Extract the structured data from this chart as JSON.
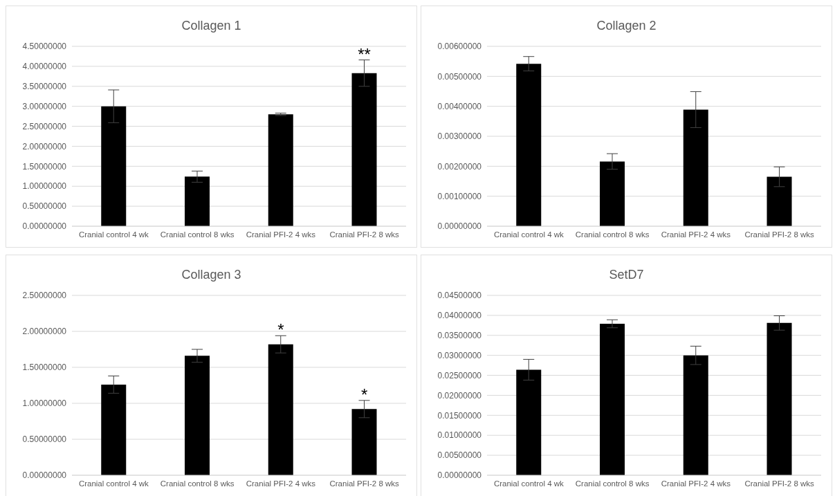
{
  "chart_data": [
    {
      "type": "bar",
      "title": "Collagen 1",
      "categories": [
        "Cranial control 4 wk",
        "Cranial control 8 wks",
        "Cranial PFI-2 4 wks",
        "Cranial PFI-2 8 wks"
      ],
      "values": [
        3.0,
        1.24,
        2.8,
        3.83
      ],
      "errors": [
        0.41,
        0.14,
        0.03,
        0.33
      ],
      "color": "#000000",
      "ylim": [
        0,
        4.5
      ],
      "yticks": [
        {
          "value": 0,
          "label": "0.00000000"
        },
        {
          "value": 0.5,
          "label": "0.50000000"
        },
        {
          "value": 1,
          "label": "1.00000000"
        },
        {
          "value": 1.5,
          "label": "1.50000000"
        },
        {
          "value": 2,
          "label": "2.00000000"
        },
        {
          "value": 2.5,
          "label": "2.50000000"
        },
        {
          "value": 3,
          "label": "3.00000000"
        },
        {
          "value": 3.5,
          "label": "3.50000000"
        },
        {
          "value": 4,
          "label": "4.00000000"
        },
        {
          "value": 4.5,
          "label": "4.50000000"
        }
      ],
      "grid": "y",
      "annotations": [
        {
          "text": "**",
          "x": "Cranial PFI-2 8 wks",
          "y": 4.16
        }
      ]
    },
    {
      "type": "bar",
      "title": "Collagen 2",
      "categories": [
        "Cranial control 4 wk",
        "Cranial control 8 wks",
        "Cranial PFI-2 4 wks",
        "Cranial PFI-2 8 wks"
      ],
      "values": [
        0.00542,
        0.00216,
        0.00389,
        0.00165
      ],
      "errors": [
        0.00024,
        0.00026,
        0.0006,
        0.00033
      ],
      "color": "#000000",
      "ylim": [
        0,
        0.006
      ],
      "yticks": [
        {
          "value": 0,
          "label": "0.00000000"
        },
        {
          "value": 0.001,
          "label": "0.00100000"
        },
        {
          "value": 0.002,
          "label": "0.00200000"
        },
        {
          "value": 0.003,
          "label": "0.00300000"
        },
        {
          "value": 0.004,
          "label": "0.00400000"
        },
        {
          "value": 0.005,
          "label": "0.00500000"
        },
        {
          "value": 0.006,
          "label": "0.00600000"
        }
      ],
      "grid": "y"
    },
    {
      "type": "bar",
      "title": "Collagen 3",
      "categories": [
        "Cranial control 4 wk",
        "Cranial control 8 wks",
        "Cranial PFI-2 4 wks",
        "Cranial PFI-2 8 wks"
      ],
      "values": [
        1.26,
        1.66,
        1.82,
        0.92
      ],
      "errors": [
        0.12,
        0.09,
        0.12,
        0.12
      ],
      "color": "#000000",
      "ylim": [
        0,
        2.5
      ],
      "yticks": [
        {
          "value": 0,
          "label": "0.00000000"
        },
        {
          "value": 0.5,
          "label": "0.50000000"
        },
        {
          "value": 1,
          "label": "1.00000000"
        },
        {
          "value": 1.5,
          "label": "1.50000000"
        },
        {
          "value": 2,
          "label": "2.00000000"
        },
        {
          "value": 2.5,
          "label": "2.50000000"
        }
      ],
      "grid": "y",
      "annotations": [
        {
          "text": "*",
          "x": "Cranial PFI-2 4 wks",
          "y": 1.94
        },
        {
          "text": "*",
          "x": "Cranial PFI-2 8 wks",
          "y": 1.04
        }
      ]
    },
    {
      "type": "bar",
      "title": "SetD7",
      "categories": [
        "Cranial control 4 wk",
        "Cranial control 8 wks",
        "Cranial PFI-2 4 wks",
        "Cranial PFI-2 8 wks"
      ],
      "values": [
        0.0264,
        0.0379,
        0.03,
        0.0381
      ],
      "errors": [
        0.0026,
        0.001,
        0.0023,
        0.0018
      ],
      "color": "#000000",
      "ylim": [
        0,
        0.045
      ],
      "yticks": [
        {
          "value": 0,
          "label": "0.00000000"
        },
        {
          "value": 0.005,
          "label": "0.00500000"
        },
        {
          "value": 0.01,
          "label": "0.01000000"
        },
        {
          "value": 0.015,
          "label": "0.01500000"
        },
        {
          "value": 0.02,
          "label": "0.02000000"
        },
        {
          "value": 0.025,
          "label": "0.02500000"
        },
        {
          "value": 0.03,
          "label": "0.03000000"
        },
        {
          "value": 0.035,
          "label": "0.03500000"
        },
        {
          "value": 0.04,
          "label": "0.04000000"
        },
        {
          "value": 0.045,
          "label": "0.04500000"
        }
      ],
      "grid": "y"
    }
  ]
}
